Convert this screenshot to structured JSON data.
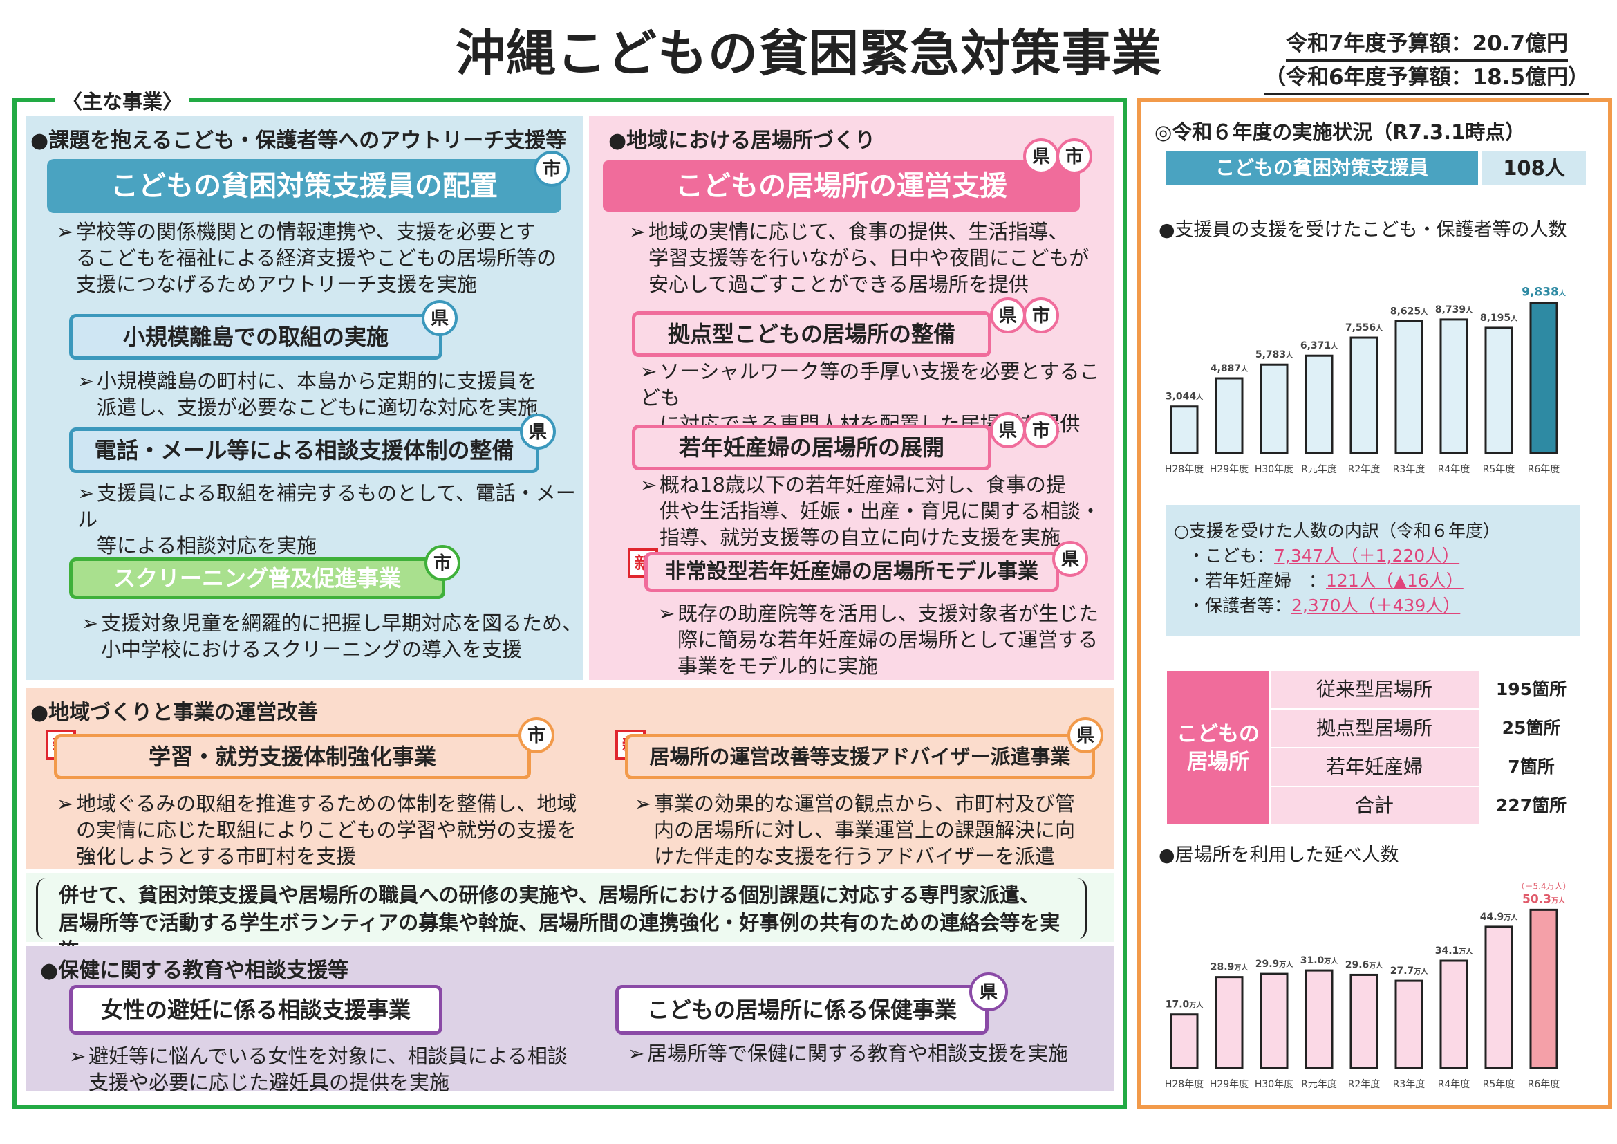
{
  "title": "沖縄こどもの貧困緊急対策事業",
  "budget": {
    "line1": "令和7年度予算額：20.7億円",
    "line2": "（令和6年度予算額：18.5億円）"
  },
  "main_tag": "〈主な事業〉",
  "outreach": {
    "section": "●課題を抱えるこども・保護者等へのアウトリーチ支援等",
    "main_label": "こどもの貧困対策支援員の配置",
    "main_badge": "市",
    "main_desc": [
      "学校等の関係機関との情報連携や、支援を必要とす",
      "るこどもを福祉による経済支援やこどもの居場所等の",
      "支援につなげるためアウトリーチ支援を実施"
    ],
    "items": [
      {
        "label": "小規模離島での取組の実施",
        "badge": "県",
        "desc": [
          "小規模離島の町村に、本島から定期的に支援員を",
          "派遣し、支援が必要なこどもに適切な対応を実施"
        ]
      },
      {
        "label": "電話・メール等による相談支援体制の整備",
        "badge": "県",
        "desc": [
          "支援員による取組を補完するものとして、電話・メール",
          "等による相談対応を実施"
        ]
      },
      {
        "label": "スクリーニング普及促進事業",
        "badge": "市",
        "desc": [
          "支援対象児童を網羅的に把握し早期対応を図るため、",
          "小中学校におけるスクリーニングの導入を支援"
        ]
      }
    ]
  },
  "ibasho": {
    "section": "●地域における居場所づくり",
    "main_label": "こどもの居場所の運営支援",
    "badges": [
      "県",
      "市"
    ],
    "main_desc": [
      "地域の実情に応じて、食事の提供、生活指導、",
      "学習支援等を行いながら、日中や夜間にこどもが",
      "安心して過ごすことができる居場所を提供"
    ],
    "items": [
      {
        "label": "拠点型こどもの居場所の整備",
        "desc": [
          "ソーシャルワーク等の手厚い支援を必要とするこども",
          "に対応できる専門人材を配置した居場所を提供"
        ]
      },
      {
        "label": "若年妊産婦の居場所の展開",
        "desc": [
          "概ね18歳以下の若年妊産婦に対し、食事の提",
          "供や生活指導、妊娠・出産・育児に関する相談・",
          "指導、就労支援等の自立に向けた支援を実施"
        ]
      },
      {
        "label": "非常設型若年妊産婦の居場所モデル事業",
        "badge": "県",
        "new": "新",
        "desc": [
          "既存の助産院等を活用し、支援対象者が生じた",
          "際に簡易な若年妊産婦の居場所として運営する",
          "事業をモデル的に実施"
        ]
      }
    ]
  },
  "community": {
    "section": "●地域づくりと事業の運営改善",
    "left": {
      "label": "学習・就労支援体制強化事業",
      "badge": "市",
      "new": "新",
      "desc": [
        "地域ぐるみの取組を推進するための体制を整備し、地域",
        "の実情に応じた取組によりこどもの学習や就労の支援を",
        "強化しようとする市町村を支援"
      ]
    },
    "right": {
      "label": "居場所の運営改善等支援アドバイザー派遣事業",
      "badge": "県",
      "new": "新",
      "desc": [
        "事業の効果的な運営の観点から、市町村及び管",
        "内の居場所に対し、事業運営上の課題解決に向",
        "けた伴走的な支援を行うアドバイザーを派遣"
      ]
    }
  },
  "note": [
    "併せて、貧困対策支援員や居場所の職員への研修の実施や、居場所における個別課題に対応する専門家派遣、",
    "居場所等で活動する学生ボランティアの募集や斡旋、居場所間の連携強化・好事例の共有のための連絡会等を実施。"
  ],
  "health": {
    "section": "●保健に関する教育や相談支援等",
    "left": {
      "label": "女性の避妊に係る相談支援事業",
      "desc": [
        "避妊等に悩んでいる女性を対象に、相談員による相談",
        "支援や必要に応じた避妊具の提供を実施"
      ]
    },
    "right": {
      "label": "こどもの居場所に係る保健事業",
      "badge": "県",
      "desc": [
        "居場所等で保健に関する教育や相談支援を実施"
      ]
    }
  },
  "status": {
    "title": "◎令和６年度の実施状況（R7.3.1時点）",
    "staff_label": "こどもの貧困対策支援員",
    "staff_value": "108人",
    "chart1_title": "●支援員の支援を受けたこども・保護者等の人数",
    "breakdown_title": "○支援を受けた人数の内訳（令和６年度）",
    "breakdown": [
      {
        "label": "・こども：",
        "value": "7,347人（＋1,220人）"
      },
      {
        "label": "・若年妊産婦　：",
        "value": "121人（▲16人）"
      },
      {
        "label": "・保護者等：",
        "value": "2,370人（＋439人）"
      }
    ],
    "table_label": [
      "こどもの",
      "居場所"
    ],
    "table": [
      {
        "name": "従来型居場所",
        "value": "195箇所"
      },
      {
        "name": "拠点型居場所",
        "value": "25箇所"
      },
      {
        "name": "若年妊産婦",
        "value": "7箇所"
      },
      {
        "name": "合計",
        "value": "227箇所"
      }
    ],
    "chart2_title": "●居場所を利用した延べ人数"
  },
  "colors": {
    "green": "#22aa44",
    "orange": "#f29a4a",
    "blue": "#4aa3c1",
    "pink": "#f06c9b",
    "purple": "#8a4aa6",
    "red": "#e0262e"
  },
  "chart_data": [
    {
      "type": "bar",
      "title": "支援員の支援を受けたこども・保護者等の人数",
      "categories": [
        "H28年度",
        "H29年度",
        "H30年度",
        "R元年度",
        "R2年度",
        "R3年度",
        "R4年度",
        "R5年度",
        "R6年度"
      ],
      "values": [
        3044,
        4887,
        5783,
        6371,
        7556,
        8625,
        8739,
        8195,
        9838
      ],
      "labels": [
        "3,044",
        "4,887",
        "5,783",
        "6,371",
        "7,556",
        "8,625",
        "8,739",
        "8,195",
        "9,838"
      ],
      "unit": "人",
      "ylim": [
        0,
        10500
      ]
    },
    {
      "type": "bar",
      "title": "居場所を利用した延べ人数",
      "categories": [
        "H28年度",
        "H29年度",
        "H30年度",
        "R元年度",
        "R2年度",
        "R3年度",
        "R4年度",
        "R5年度",
        "R6年度"
      ],
      "values": [
        17.0,
        28.9,
        29.9,
        31.0,
        29.6,
        27.7,
        34.1,
        44.9,
        50.3
      ],
      "labels": [
        "17.0",
        "28.9",
        "29.9",
        "31.0",
        "29.6",
        "27.7",
        "34.1",
        "44.9",
        "50.3"
      ],
      "unit": "万人",
      "extra_label": "（＋5.4万人）",
      "ylim": [
        0,
        55
      ]
    }
  ]
}
